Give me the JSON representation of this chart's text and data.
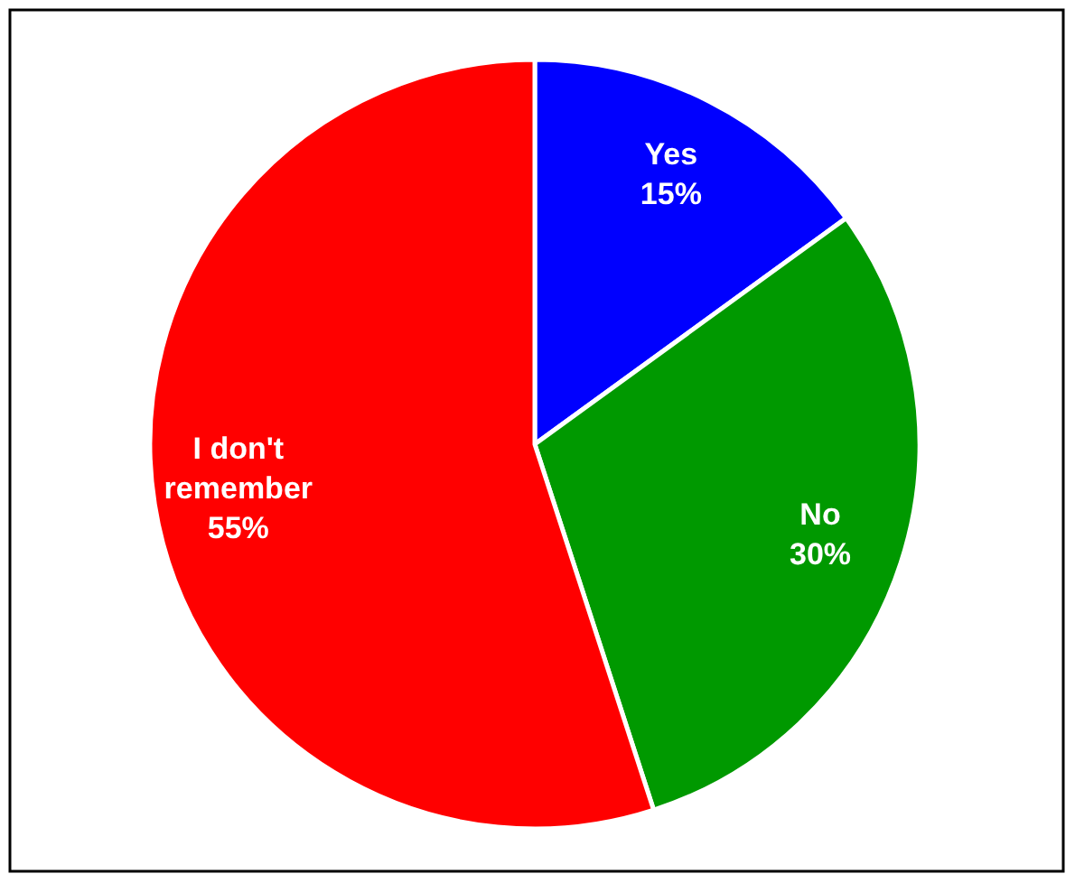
{
  "chart_data": {
    "type": "pie",
    "categories": [
      "Yes",
      "No",
      "I don't remember"
    ],
    "values": [
      15,
      30,
      55
    ],
    "colors": [
      "#0000ff",
      "#009900",
      "#ff0000"
    ],
    "value_labels": [
      "15%",
      "30%",
      "55%"
    ]
  }
}
